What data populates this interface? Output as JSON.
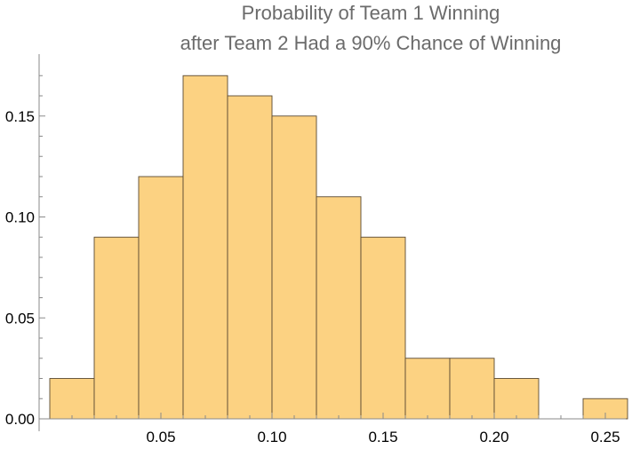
{
  "chart_data": {
    "type": "bar",
    "title": "Probability of Team 1 Winning",
    "subtitle": "after Team 2 Had a 90% Chance of Winning",
    "xlabel": "",
    "ylabel": "",
    "bin_width": 0.02,
    "bins": [
      {
        "x_start": 0.0,
        "x_end": 0.02,
        "value": 0.02
      },
      {
        "x_start": 0.02,
        "x_end": 0.04,
        "value": 0.09
      },
      {
        "x_start": 0.04,
        "x_end": 0.06,
        "value": 0.12
      },
      {
        "x_start": 0.06,
        "x_end": 0.08,
        "value": 0.17
      },
      {
        "x_start": 0.08,
        "x_end": 0.1,
        "value": 0.16
      },
      {
        "x_start": 0.1,
        "x_end": 0.12,
        "value": 0.15
      },
      {
        "x_start": 0.12,
        "x_end": 0.14,
        "value": 0.11
      },
      {
        "x_start": 0.14,
        "x_end": 0.16,
        "value": 0.09
      },
      {
        "x_start": 0.16,
        "x_end": 0.18,
        "value": 0.03
      },
      {
        "x_start": 0.18,
        "x_end": 0.2,
        "value": 0.03
      },
      {
        "x_start": 0.2,
        "x_end": 0.22,
        "value": 0.02
      },
      {
        "x_start": 0.24,
        "x_end": 0.26,
        "value": 0.01
      }
    ],
    "xlim": [
      -0.005,
      0.26
    ],
    "ylim": [
      0,
      0.178
    ],
    "x_ticks": [
      0.05,
      0.1,
      0.15,
      0.2,
      0.25
    ],
    "x_tick_labels": [
      "0.05",
      "0.10",
      "0.15",
      "0.20",
      "0.25"
    ],
    "y_ticks": [
      0.0,
      0.05,
      0.1,
      0.15
    ],
    "y_tick_labels": [
      "0.00",
      "0.05",
      "0.10",
      "0.15"
    ],
    "grid": false,
    "bar_color": "#fcd282",
    "bar_edge_color": "#5a4a32",
    "axis_color": "#8a8a8a",
    "title_color": "#6b6b6b"
  }
}
